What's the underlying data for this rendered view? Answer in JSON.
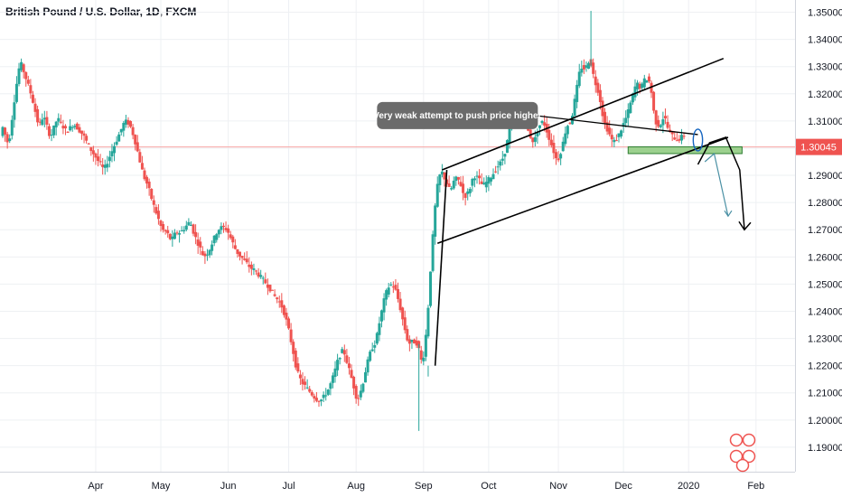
{
  "chart_data": {
    "type": "candlestick",
    "title": "British Pound / U.S. Dollar, 1D, FXCM",
    "y_ticks": [
      "1.19000",
      "1.20000",
      "1.21000",
      "1.22000",
      "1.23000",
      "1.24000",
      "1.25000",
      "1.26000",
      "1.27000",
      "1.28000",
      "1.29000",
      "1.30000",
      "1.31000",
      "1.32000",
      "1.33000",
      "1.34000",
      "1.35000"
    ],
    "x_ticks": [
      {
        "label": "Apr",
        "t": 41
      },
      {
        "label": "May",
        "t": 69
      },
      {
        "label": "Jun",
        "t": 98
      },
      {
        "label": "Jul",
        "t": 124
      },
      {
        "label": "Aug",
        "t": 153
      },
      {
        "label": "Sep",
        "t": 182
      },
      {
        "label": "Oct",
        "t": 210
      },
      {
        "label": "Nov",
        "t": 240
      },
      {
        "label": "Dec",
        "t": 268
      },
      {
        "label": "2020",
        "t": 296
      },
      {
        "label": "Feb",
        "t": 325
      }
    ],
    "ylim": [
      1.181,
      1.3545
    ],
    "xlim": [
      1,
      341
    ],
    "last_price": "1.30045",
    "last_price_value": 1.30045,
    "colors": {
      "up": "#26a69a",
      "down": "#ef5350",
      "price_line": "#f7a5a3",
      "price_tag": "#ef5350",
      "zone": "#8bc97a"
    },
    "anchors": [
      [
        1,
        1.309
      ],
      [
        4,
        1.301
      ],
      [
        7,
        1.321
      ],
      [
        9,
        1.332
      ],
      [
        11,
        1.327
      ],
      [
        14,
        1.319
      ],
      [
        17,
        1.308
      ],
      [
        19,
        1.312
      ],
      [
        22,
        1.304
      ],
      [
        25,
        1.311
      ],
      [
        29,
        1.306
      ],
      [
        32,
        1.309
      ],
      [
        36,
        1.305
      ],
      [
        39,
        1.3
      ],
      [
        42,
        1.296
      ],
      [
        45,
        1.292
      ],
      [
        48,
        1.298
      ],
      [
        51,
        1.304
      ],
      [
        54,
        1.31
      ],
      [
        56,
        1.309
      ],
      [
        58,
        1.304
      ],
      [
        60,
        1.297
      ],
      [
        62,
        1.29
      ],
      [
        64,
        1.286
      ],
      [
        66,
        1.28
      ],
      [
        68,
        1.275
      ],
      [
        70,
        1.27
      ],
      [
        72,
        1.269
      ],
      [
        74,
        1.266
      ],
      [
        76,
        1.269
      ],
      [
        78,
        1.269
      ],
      [
        80,
        1.271
      ],
      [
        82,
        1.273
      ],
      [
        84,
        1.268
      ],
      [
        86,
        1.264
      ],
      [
        88,
        1.26
      ],
      [
        90,
        1.262
      ],
      [
        92,
        1.266
      ],
      [
        94,
        1.27
      ],
      [
        96,
        1.271
      ],
      [
        98,
        1.27
      ],
      [
        100,
        1.266
      ],
      [
        102,
        1.262
      ],
      [
        104,
        1.26
      ],
      [
        106,
        1.258
      ],
      [
        108,
        1.256
      ],
      [
        110,
        1.255
      ],
      [
        112,
        1.253
      ],
      [
        114,
        1.251
      ],
      [
        116,
        1.249
      ],
      [
        118,
        1.246
      ],
      [
        120,
        1.244
      ],
      [
        122,
        1.241
      ],
      [
        124,
        1.235
      ],
      [
        126,
        1.227
      ],
      [
        128,
        1.218
      ],
      [
        130,
        1.214
      ],
      [
        132,
        1.212
      ],
      [
        134,
        1.21
      ],
      [
        136,
        1.208
      ],
      [
        138,
        1.207
      ],
      [
        140,
        1.209
      ],
      [
        142,
        1.212
      ],
      [
        144,
        1.217
      ],
      [
        146,
        1.223
      ],
      [
        148,
        1.226
      ],
      [
        150,
        1.22
      ],
      [
        152,
        1.214
      ],
      [
        154,
        1.207
      ],
      [
        156,
        1.212
      ],
      [
        158,
        1.22
      ],
      [
        160,
        1.226
      ],
      [
        162,
        1.229
      ],
      [
        164,
        1.238
      ],
      [
        166,
        1.246
      ],
      [
        168,
        1.25
      ],
      [
        170,
        1.249
      ],
      [
        172,
        1.243
      ],
      [
        174,
        1.235
      ],
      [
        176,
        1.228
      ],
      [
        178,
        1.229
      ],
      [
        180,
        1.228
      ],
      [
        182,
        1.22
      ],
      [
        184,
        1.235
      ],
      [
        186,
        1.262
      ],
      [
        188,
        1.284
      ],
      [
        190,
        1.292
      ],
      [
        192,
        1.288
      ],
      [
        194,
        1.284
      ],
      [
        196,
        1.289
      ],
      [
        198,
        1.288
      ],
      [
        200,
        1.282
      ],
      [
        202,
        1.284
      ],
      [
        204,
        1.29
      ],
      [
        206,
        1.289
      ],
      [
        208,
        1.286
      ],
      [
        210,
        1.288
      ],
      [
        212,
        1.29
      ],
      [
        214,
        1.293
      ],
      [
        216,
        1.295
      ],
      [
        218,
        1.3
      ],
      [
        220,
        1.31
      ],
      [
        222,
        1.313
      ],
      [
        224,
        1.315
      ],
      [
        226,
        1.31
      ],
      [
        228,
        1.305
      ],
      [
        230,
        1.302
      ],
      [
        232,
        1.308
      ],
      [
        234,
        1.31
      ],
      [
        236,
        1.305
      ],
      [
        238,
        1.3
      ],
      [
        240,
        1.295
      ],
      [
        242,
        1.3
      ],
      [
        244,
        1.308
      ],
      [
        246,
        1.31
      ],
      [
        248,
        1.32
      ],
      [
        250,
        1.33
      ],
      [
        252,
        1.329
      ],
      [
        254,
        1.333
      ],
      [
        256,
        1.325
      ],
      [
        258,
        1.32
      ],
      [
        260,
        1.31
      ],
      [
        262,
        1.306
      ],
      [
        264,
        1.302
      ],
      [
        266,
        1.304
      ],
      [
        268,
        1.308
      ],
      [
        270,
        1.312
      ],
      [
        272,
        1.318
      ],
      [
        274,
        1.324
      ],
      [
        276,
        1.322
      ],
      [
        278,
        1.326
      ],
      [
        280,
        1.324
      ],
      [
        282,
        1.31
      ],
      [
        284,
        1.308
      ],
      [
        286,
        1.312
      ],
      [
        288,
        1.306
      ],
      [
        290,
        1.304
      ],
      [
        292,
        1.303
      ],
      [
        294,
        1.3045
      ]
    ],
    "drawings": {
      "channel_upper": [
        [
          190,
          1.292
        ],
        [
          311,
          1.333
        ]
      ],
      "channel_lower": [
        [
          188,
          1.265
        ],
        [
          313,
          1.304
        ]
      ],
      "impulse_line": [
        [
          187,
          1.22
        ],
        [
          192,
          1.292
        ]
      ],
      "annotation_line": [
        [
          230,
          1.312
        ],
        [
          300,
          1.305
        ]
      ],
      "zone": {
        "t0": 270,
        "t1": 319,
        "p0": 1.298,
        "p1": 1.3005
      },
      "ellipse": {
        "t": 300,
        "p": 1.303,
        "rt": 2,
        "rp": 0.004
      },
      "arrow_main": [
        [
          300,
          1.294
        ],
        [
          305,
          1.302
        ],
        [
          312,
          1.304
        ],
        [
          318,
          1.292
        ],
        [
          320,
          1.27
        ]
      ],
      "arrow_teal": [
        [
          303,
          1.295
        ],
        [
          307,
          1.298
        ],
        [
          313,
          1.275
        ]
      ]
    },
    "annotation_text": "Very weak attempt to push price higher"
  }
}
